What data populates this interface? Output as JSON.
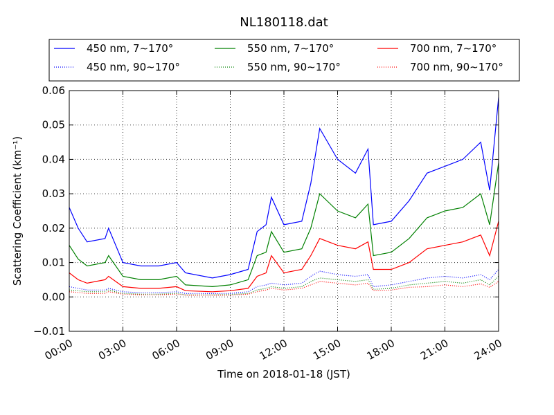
{
  "chart_data": {
    "type": "line",
    "title": "NL180118.dat",
    "xlabel": "Time on 2018-01-18 (JST)",
    "ylabel": "Scattering Coefficient (km⁻¹)",
    "xlim": [
      0,
      24
    ],
    "ylim": [
      -0.01,
      0.06
    ],
    "grid": true,
    "legend_placement": "top (above plot), 3 columns",
    "x_ticks": [
      {
        "value": 0,
        "label": "00:00"
      },
      {
        "value": 3,
        "label": "03:00"
      },
      {
        "value": 6,
        "label": "06:00"
      },
      {
        "value": 9,
        "label": "09:00"
      },
      {
        "value": 12,
        "label": "12:00"
      },
      {
        "value": 15,
        "label": "15:00"
      },
      {
        "value": 18,
        "label": "18:00"
      },
      {
        "value": 21,
        "label": "21:00"
      },
      {
        "value": 24,
        "label": "24:00"
      }
    ],
    "y_ticks": [
      {
        "value": -0.01,
        "label": "−0.01"
      },
      {
        "value": 0.0,
        "label": "0.00"
      },
      {
        "value": 0.01,
        "label": "0.01"
      },
      {
        "value": 0.02,
        "label": "0.02"
      },
      {
        "value": 0.03,
        "label": "0.03"
      },
      {
        "value": 0.04,
        "label": "0.04"
      },
      {
        "value": 0.05,
        "label": "0.05"
      },
      {
        "value": 0.06,
        "label": "0.06"
      }
    ],
    "x_hours": [
      0,
      0.5,
      1,
      2,
      2.2,
      3,
      4,
      5,
      6,
      6.5,
      8,
      9,
      10,
      10.5,
      11,
      11.3,
      12,
      13,
      13.5,
      14,
      15,
      16,
      16.7,
      17,
      18,
      19,
      20,
      21,
      22,
      23,
      23.5,
      24
    ],
    "series": [
      {
        "name": "450 nm, 7∼170°",
        "color": "#0000ff",
        "style": "solid",
        "values": [
          0.026,
          0.02,
          0.016,
          0.017,
          0.02,
          0.01,
          0.009,
          0.009,
          0.01,
          0.007,
          0.0055,
          0.0065,
          0.008,
          0.019,
          0.021,
          0.029,
          0.021,
          0.022,
          0.033,
          0.049,
          0.04,
          0.036,
          0.043,
          0.021,
          0.022,
          0.028,
          0.036,
          0.038,
          0.04,
          0.045,
          0.031,
          0.058
        ]
      },
      {
        "name": "450 nm, 90∼170°",
        "color": "#0000ff",
        "style": "dotted",
        "values": [
          0.003,
          0.0025,
          0.002,
          0.002,
          0.0025,
          0.0015,
          0.0012,
          0.0012,
          0.0015,
          0.001,
          0.001,
          0.001,
          0.0015,
          0.003,
          0.0035,
          0.004,
          0.0035,
          0.004,
          0.006,
          0.0075,
          0.0065,
          0.006,
          0.0065,
          0.003,
          0.0035,
          0.0045,
          0.0055,
          0.006,
          0.0055,
          0.0065,
          0.005,
          0.008
        ]
      },
      {
        "name": "550 nm, 7∼170°",
        "color": "#008000",
        "style": "solid",
        "values": [
          0.015,
          0.011,
          0.009,
          0.01,
          0.012,
          0.006,
          0.005,
          0.005,
          0.006,
          0.0035,
          0.003,
          0.0035,
          0.005,
          0.012,
          0.013,
          0.019,
          0.013,
          0.014,
          0.02,
          0.03,
          0.025,
          0.023,
          0.027,
          0.012,
          0.013,
          0.017,
          0.023,
          0.025,
          0.026,
          0.03,
          0.021,
          0.039
        ]
      },
      {
        "name": "550 nm, 90∼170°",
        "color": "#008000",
        "style": "dotted",
        "values": [
          0.002,
          0.0018,
          0.0015,
          0.0015,
          0.002,
          0.001,
          0.0008,
          0.0008,
          0.001,
          0.0006,
          0.0006,
          0.0007,
          0.001,
          0.002,
          0.0025,
          0.003,
          0.0025,
          0.003,
          0.0045,
          0.0055,
          0.005,
          0.0045,
          0.005,
          0.0022,
          0.0025,
          0.0035,
          0.004,
          0.0045,
          0.004,
          0.005,
          0.0035,
          0.006
        ]
      },
      {
        "name": "700 nm, 7∼170°",
        "color": "#ff0000",
        "style": "solid",
        "values": [
          0.007,
          0.005,
          0.004,
          0.005,
          0.006,
          0.003,
          0.0025,
          0.0025,
          0.003,
          0.0018,
          0.0015,
          0.0018,
          0.0025,
          0.006,
          0.007,
          0.012,
          0.007,
          0.008,
          0.012,
          0.017,
          0.015,
          0.014,
          0.016,
          0.008,
          0.008,
          0.01,
          0.014,
          0.015,
          0.016,
          0.018,
          0.012,
          0.022
        ]
      },
      {
        "name": "700 nm, 90∼170°",
        "color": "#ff0000",
        "style": "dotted",
        "values": [
          0.0015,
          0.0013,
          0.001,
          0.001,
          0.0015,
          0.0008,
          0.0006,
          0.0006,
          0.0008,
          0.0005,
          0.0005,
          0.0005,
          0.0008,
          0.0015,
          0.002,
          0.0025,
          0.002,
          0.0025,
          0.0035,
          0.0045,
          0.004,
          0.0035,
          0.004,
          0.0018,
          0.002,
          0.0028,
          0.003,
          0.0035,
          0.003,
          0.0038,
          0.0028,
          0.0045
        ]
      }
    ]
  }
}
